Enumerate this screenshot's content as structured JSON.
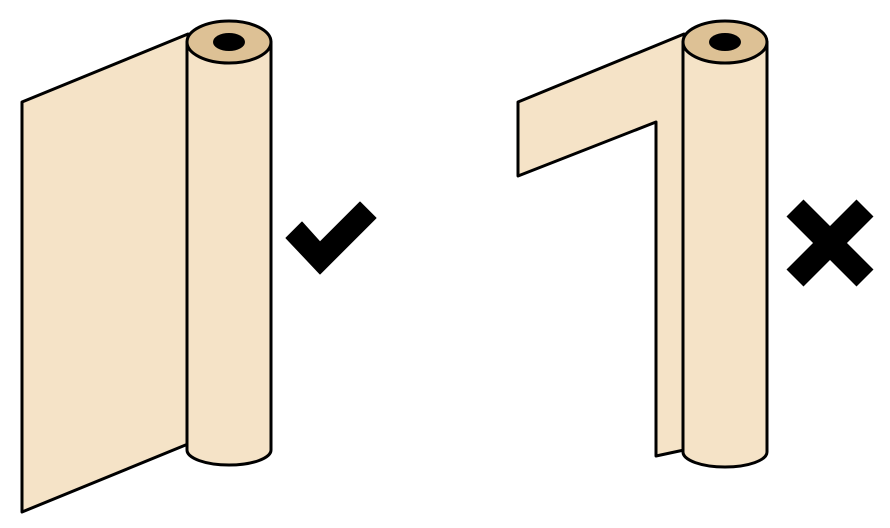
{
  "colors": {
    "paper": "#F5E3C7",
    "core_ring": "#DDC195",
    "outline": "#000000",
    "background": "#FFFFFF"
  },
  "panels": [
    {
      "id": "correct",
      "status": "correct",
      "mark_icon": "check-mark-icon"
    },
    {
      "id": "incorrect",
      "status": "incorrect",
      "mark_icon": "cross-mark-icon"
    }
  ]
}
